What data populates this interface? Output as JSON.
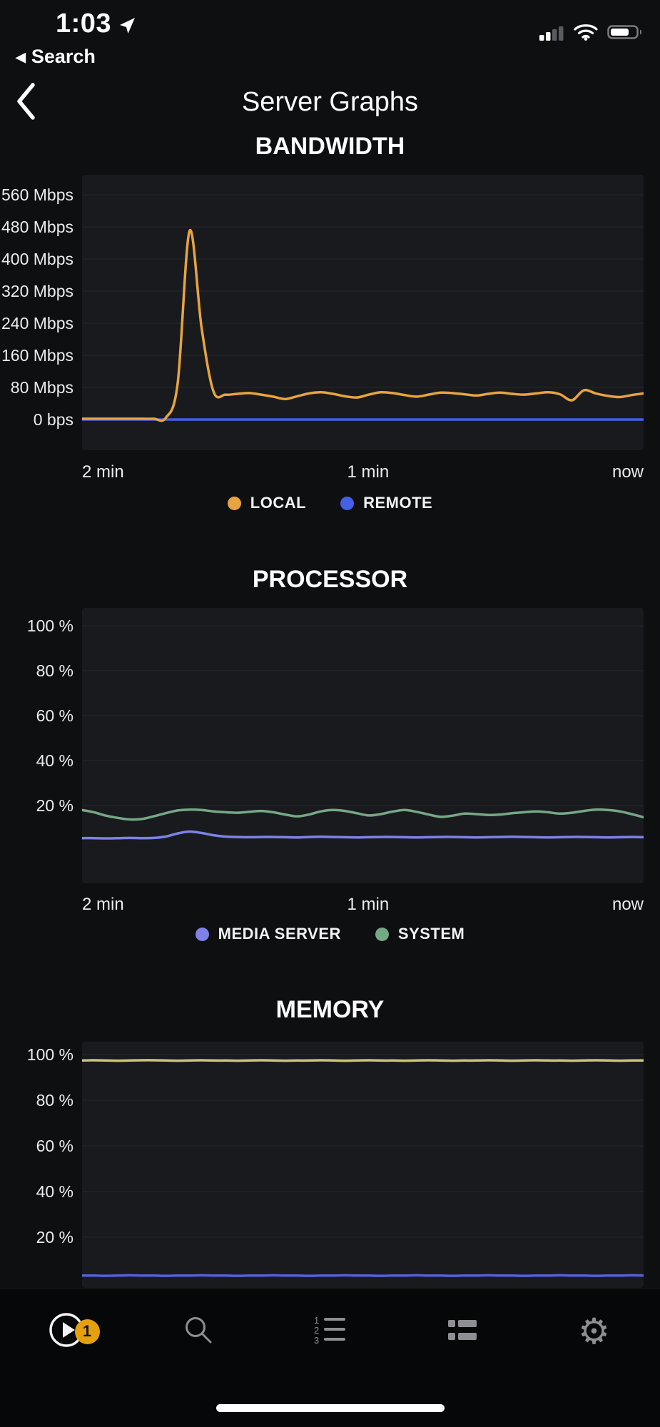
{
  "status_bar": {
    "time": "1:03",
    "back_link": "Search",
    "icons": [
      "location-arrow-icon",
      "cellular-signal-icon",
      "wifi-icon",
      "battery-icon"
    ]
  },
  "nav": {
    "title": "Server Graphs"
  },
  "colors": {
    "accent_orange": "#e5a00d",
    "local": "#e7a43f",
    "remote": "#4560e5",
    "media_server": "#7d82e8",
    "system": "#75a885",
    "memory_top_line": "#ccc678",
    "memory_bottom_line": "#5560dd"
  },
  "tab_bar": {
    "badge_count": "1",
    "tabs": [
      {
        "name": "now-playing",
        "icon": "play-circle-icon"
      },
      {
        "name": "search",
        "icon": "search-icon"
      },
      {
        "name": "playlists",
        "icon": "ordered-list-icon"
      },
      {
        "name": "dashboard",
        "icon": "dashboard-icon"
      },
      {
        "name": "settings",
        "icon": "gear-icon"
      }
    ]
  },
  "chart_data": [
    {
      "id": "bandwidth",
      "type": "line",
      "title": "BANDWIDTH",
      "y_tick_labels": [
        "560 Mbps",
        "480 Mbps",
        "400 Mbps",
        "320 Mbps",
        "240 Mbps",
        "160 Mbps",
        "80 Mbps",
        "0 bps"
      ],
      "x_tick_labels": [
        "2 min",
        "1 min",
        "now"
      ],
      "ylim": [
        0,
        560
      ],
      "y_tick_step": 80,
      "unit": "Mbps",
      "legend": [
        {
          "label": "LOCAL",
          "color": "#e7a43f"
        },
        {
          "label": "REMOTE",
          "color": "#4560e5"
        }
      ],
      "series": [
        {
          "name": "REMOTE",
          "color": "#4560e5",
          "values": [
            0,
            0,
            0,
            0,
            0,
            0,
            0,
            0,
            0,
            0,
            0,
            0,
            0,
            0,
            0,
            0,
            0,
            0,
            0,
            0,
            0,
            0,
            0,
            0,
            0,
            0,
            0,
            0,
            0,
            0,
            0,
            0,
            0,
            0,
            0,
            0,
            0,
            0,
            0,
            0,
            0,
            0,
            0,
            0,
            0,
            0,
            0,
            0
          ]
        },
        {
          "name": "LOCAL",
          "color": "#e7a43f",
          "values": [
            2,
            2,
            2,
            2,
            2,
            2,
            2,
            4,
            90,
            470,
            230,
            70,
            62,
            64,
            66,
            62,
            57,
            51,
            58,
            65,
            68,
            64,
            58,
            55,
            62,
            68,
            66,
            61,
            57,
            62,
            67,
            66,
            63,
            60,
            64,
            67,
            64,
            62,
            65,
            68,
            63,
            48,
            73,
            65,
            59,
            56,
            61,
            65
          ]
        }
      ]
    },
    {
      "id": "processor",
      "type": "line",
      "title": "PROCESSOR",
      "y_tick_labels": [
        "100 %",
        "80 %",
        "60 %",
        "40 %",
        "20 %"
      ],
      "x_tick_labels": [
        "2 min",
        "1 min",
        "now"
      ],
      "ylim": [
        0,
        100
      ],
      "y_tick_step": 20,
      "unit": "%",
      "legend": [
        {
          "label": "MEDIA SERVER",
          "color": "#7d82e8"
        },
        {
          "label": "SYSTEM",
          "color": "#75a885"
        }
      ],
      "series": [
        {
          "name": "SYSTEM",
          "color": "#75a885",
          "values": [
            18,
            17,
            15.5,
            14.5,
            13.8,
            14,
            15.2,
            16.6,
            17.8,
            18.2,
            18,
            17.4,
            17,
            16.8,
            17.2,
            17.6,
            17,
            16,
            15.2,
            16,
            17.4,
            18,
            17.6,
            16.6,
            15.6,
            16.2,
            17.3,
            18,
            17.2,
            16,
            15,
            15.5,
            16.4,
            16.2,
            15.8,
            16,
            16.6,
            17,
            17.4,
            17,
            16.4,
            16.8,
            17.6,
            18.2,
            18,
            17.4,
            16.2,
            14.8
          ]
        },
        {
          "name": "MEDIA SERVER",
          "color": "#7d82e8",
          "values": [
            5.5,
            5.5,
            5.4,
            5.5,
            5.6,
            5.5,
            5.6,
            6.2,
            7.6,
            8.4,
            7.8,
            6.8,
            6.2,
            6,
            5.9,
            6,
            6,
            5.9,
            5.8,
            6,
            6.1,
            6,
            5.9,
            5.8,
            5.9,
            6,
            6,
            5.9,
            5.8,
            5.9,
            6,
            6,
            5.9,
            5.8,
            5.9,
            6,
            6.1,
            6,
            5.9,
            5.8,
            5.9,
            6,
            6,
            5.9,
            5.8,
            5.9,
            6,
            5.9
          ]
        }
      ]
    },
    {
      "id": "memory",
      "type": "line",
      "title": "MEMORY",
      "y_tick_labels": [
        "100 %",
        "80 %",
        "60 %",
        "40 %",
        "20 %"
      ],
      "x_tick_labels": [],
      "ylim": [
        0,
        100
      ],
      "y_tick_step": 20,
      "unit": "%",
      "legend": [],
      "series": [
        {
          "color": "#ccc678",
          "values": [
            97.4,
            97.5,
            97.4,
            97.3,
            97.4,
            97.5,
            97.5,
            97.4,
            97.3,
            97.4,
            97.5,
            97.4,
            97.4,
            97.3,
            97.4,
            97.5,
            97.4,
            97.3,
            97.4,
            97.4,
            97.5,
            97.4,
            97.3,
            97.4,
            97.5,
            97.4,
            97.4,
            97.3,
            97.4,
            97.5,
            97.4,
            97.3,
            97.4,
            97.4,
            97.5,
            97.4,
            97.3,
            97.4,
            97.5,
            97.4,
            97.4,
            97.3,
            97.4,
            97.5,
            97.4,
            97.3,
            97.4,
            97.4
          ]
        },
        {
          "color": "#5560dd",
          "values": [
            3.2,
            3.2,
            3.1,
            3.2,
            3.3,
            3.2,
            3.2,
            3.1,
            3.2,
            3.2,
            3.3,
            3.2,
            3.2,
            3.1,
            3.2,
            3.2,
            3.3,
            3.2,
            3.2,
            3.1,
            3.2,
            3.2,
            3.3,
            3.2,
            3.2,
            3.1,
            3.2,
            3.2,
            3.3,
            3.2,
            3.2,
            3.1,
            3.2,
            3.2,
            3.3,
            3.2,
            3.2,
            3.1,
            3.2,
            3.2,
            3.3,
            3.2,
            3.2,
            3.1,
            3.2,
            3.2,
            3.3,
            3.2
          ]
        }
      ]
    }
  ]
}
